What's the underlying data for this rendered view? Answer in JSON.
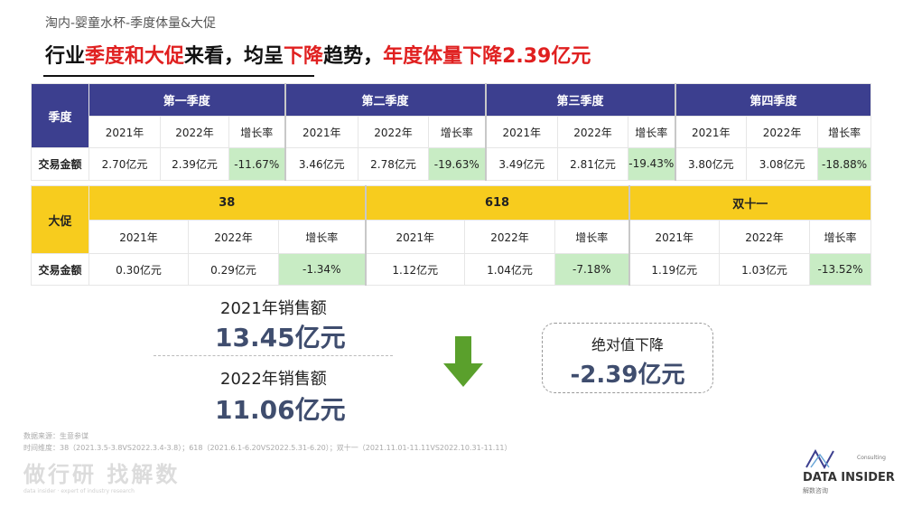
{
  "header": {
    "subtitle": "淘内-婴童水杯-季度体量&大促",
    "headline_parts": [
      {
        "text": "行业",
        "color": "#111111"
      },
      {
        "text": "季度和大促",
        "color": "#e02020"
      },
      {
        "text": "来看，均呈",
        "color": "#111111"
      },
      {
        "text": "下降",
        "color": "#e02020"
      },
      {
        "text": "趋势，",
        "color": "#111111"
      },
      {
        "text": "年度体量下降2.39亿元",
        "color": "#e02020"
      }
    ]
  },
  "quarter_table": {
    "row_label": "季度",
    "metric_label": "交易金额",
    "col_labels": [
      "2021年",
      "2022年",
      "增长率"
    ],
    "groups": [
      {
        "name": "第一季度",
        "v2021": "2.70亿元",
        "v2022": "2.39亿元",
        "growth": "-11.67%"
      },
      {
        "name": "第二季度",
        "v2021": "3.46亿元",
        "v2022": "2.78亿元",
        "growth": "-19.63%"
      },
      {
        "name": "第三季度",
        "v2021": "3.49亿元",
        "v2022": "2.81亿元",
        "growth": "-19.43%"
      },
      {
        "name": "第四季度",
        "v2021": "3.80亿元",
        "v2022": "3.08亿元",
        "growth": "-18.88%"
      }
    ]
  },
  "promo_table": {
    "row_label": "大促",
    "metric_label": "交易金额",
    "col_labels": [
      "2021年",
      "2022年",
      "增长率"
    ],
    "groups": [
      {
        "name": "38",
        "v2021": "0.30亿元",
        "v2022": "0.29亿元",
        "growth": "-1.34%"
      },
      {
        "name": "618",
        "v2021": "1.12亿元",
        "v2022": "1.04亿元",
        "growth": "-7.18%"
      },
      {
        "name": "双十一",
        "v2021": "1.19亿元",
        "v2022": "1.03亿元",
        "growth": "-13.52%"
      }
    ]
  },
  "summary": {
    "sales_2021_label": "2021年销售额",
    "sales_2021_value": "13.45亿元",
    "sales_2022_label": "2022年销售额",
    "sales_2022_value": "11.06亿元",
    "arrow_icon": "down-arrow-icon",
    "arrow_color": "#5aa02c",
    "drop_label": "绝对值下降",
    "drop_value": "-2.39亿元"
  },
  "footer": {
    "source": "数据来源：生意参谋",
    "period": "时间维度：38（2021.3.5-3.8VS2022.3.4-3.8）；618（2021.6.1-6.20VS2022.5.31-6.20）；双十一（2021.11.01-11.11VS2022.10.31-11.11）",
    "watermark": "做行研 找解数",
    "watermark_sub": "data insider · expert of industry research"
  },
  "logo": {
    "consulting": "Consulting",
    "name": "DATA INSIDER",
    "cn": "解数咨询"
  },
  "colors": {
    "quarter_header": "#3c3f8f",
    "promo_header": "#f7cc1e",
    "negative_cell": "#c8ecc4",
    "kpi_text": "#3f4d6e",
    "accent_red": "#e02020"
  }
}
